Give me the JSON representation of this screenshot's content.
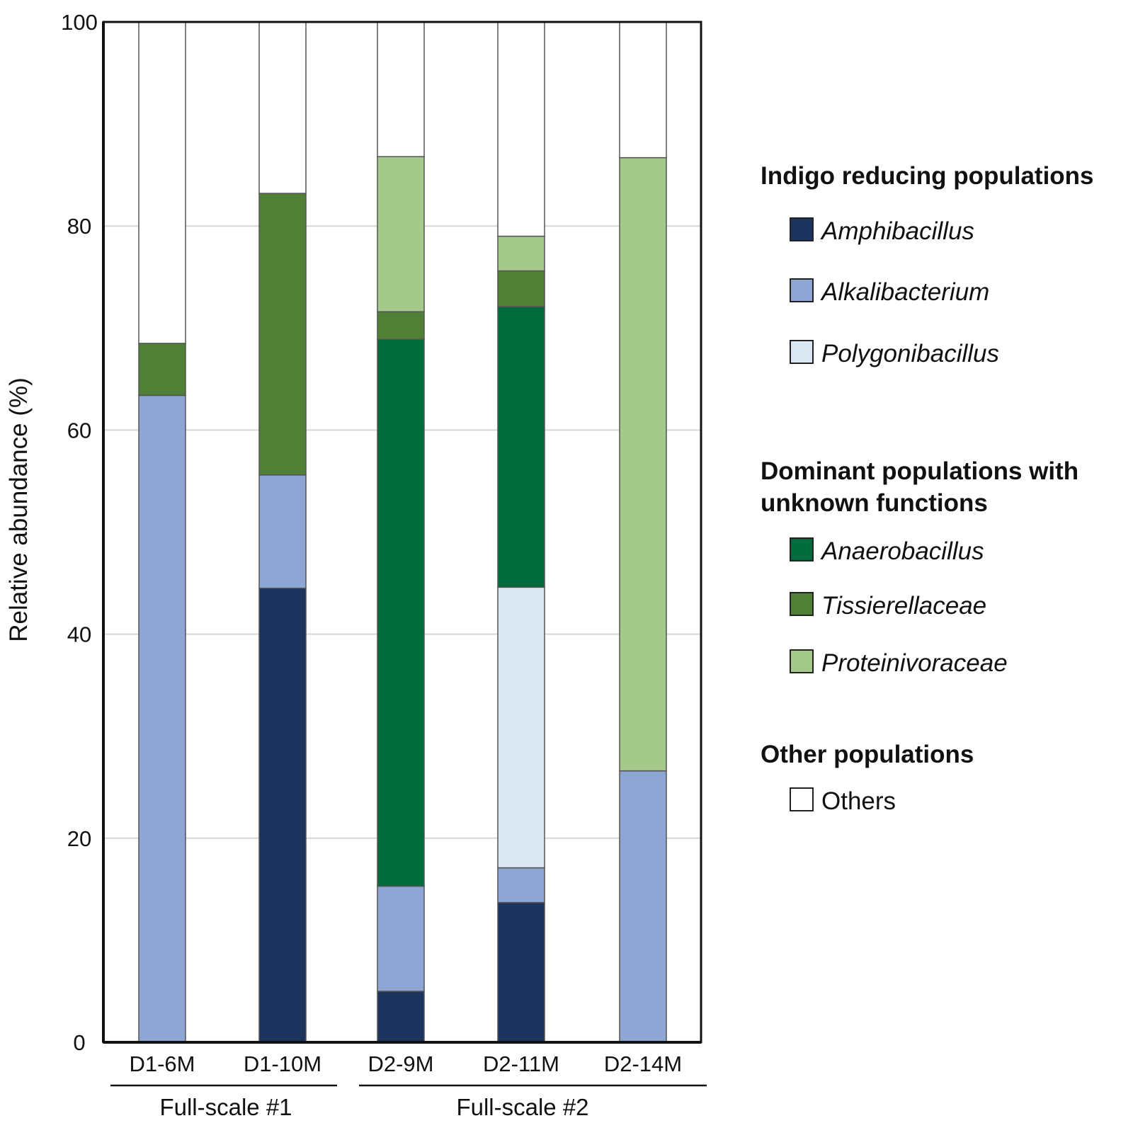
{
  "chart_data": {
    "type": "bar",
    "stacked": true,
    "ylabel": "Relative abundance (%)",
    "xlabel": "",
    "ylim": [
      0,
      100
    ],
    "yticks": [
      0,
      20,
      40,
      60,
      80,
      100
    ],
    "categories": [
      "D1-6M",
      "D1-10M",
      "D2-9M",
      "D2-11M",
      "D2-14M"
    ],
    "groups": [
      {
        "label": "Full-scale #1",
        "categories": [
          "D1-6M",
          "D1-10M"
        ]
      },
      {
        "label": "Full-scale #2",
        "categories": [
          "D2-9M",
          "D2-11M",
          "D2-14M"
        ]
      }
    ],
    "series": [
      {
        "name": "Amphibacillus",
        "color": "#1d345e",
        "values": [
          0.0,
          44.5,
          5.0,
          13.7,
          0.0
        ]
      },
      {
        "name": "Alkalibacterium",
        "color": "#8da6d4",
        "values": [
          63.4,
          11.1,
          10.3,
          3.4,
          26.6
        ]
      },
      {
        "name": "Polygonibacillus",
        "color": "#dce7f4",
        "values": [
          0.0,
          0.0,
          0.0,
          27.5,
          0.0
        ]
      },
      {
        "name": "Anaerobacillus",
        "color": "#006b3d",
        "values": [
          0.0,
          0.0,
          53.6,
          27.5,
          0.0
        ]
      },
      {
        "name": "Tissierellaceae",
        "color": "#507f36",
        "values": [
          5.1,
          27.6,
          2.7,
          3.5,
          0.0
        ]
      },
      {
        "name": "Proteinivoraceae",
        "color": "#a4c98a",
        "values": [
          0.0,
          0.0,
          15.2,
          3.4,
          60.1
        ]
      },
      {
        "name": "Others",
        "color": "#ffffff",
        "values": [
          31.5,
          16.8,
          13.2,
          21.0,
          13.3
        ]
      }
    ],
    "legend": {
      "placement": "right",
      "sections": [
        {
          "heading": [
            "Indigo reducing populations"
          ],
          "items": [
            {
              "label": "Amphibacillus",
              "italic": true
            },
            {
              "label": "Alkalibacterium",
              "italic": true
            },
            {
              "label": "Polygonibacillus",
              "italic": true
            }
          ]
        },
        {
          "heading": [
            "Dominant populations with",
            "unknown functions"
          ],
          "items": [
            {
              "label": "Anaerobacillus",
              "italic": true
            },
            {
              "label": "Tissierellaceae",
              "italic": true
            },
            {
              "label": "Proteinivoraceae",
              "italic": true
            }
          ]
        },
        {
          "heading": [
            "Other populations"
          ],
          "items": [
            {
              "label": "Others",
              "italic": false
            }
          ]
        }
      ]
    },
    "grid": true
  }
}
